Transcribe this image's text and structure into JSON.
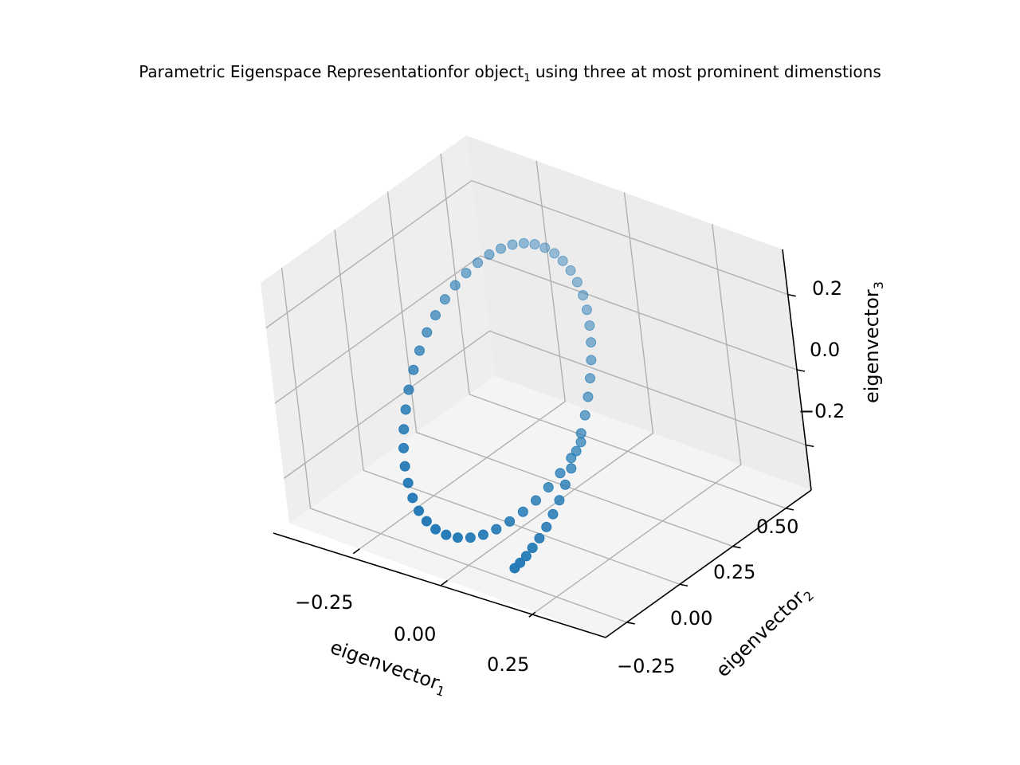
{
  "chart_data": {
    "type": "scatter",
    "projection": "3d",
    "title": {
      "prefix": "Parametric Eigenspace Representationfor object",
      "subscript": "1",
      "suffix": " using three at most prominent dimenstions"
    },
    "xlabel": {
      "text": "eigenvector",
      "subscript": "1"
    },
    "ylabel": {
      "text": "eigenvector",
      "subscript": "2"
    },
    "zlabel": {
      "text": "eigenvector",
      "subscript": "3"
    },
    "xticks": [
      "−0.25",
      "0.00",
      "0.25"
    ],
    "yticks": [
      "−0.25",
      "0.00",
      "0.25",
      "0.50"
    ],
    "zticks": [
      "−0.2",
      "0.0",
      "0.2"
    ],
    "xlim": [
      -0.45,
      0.45
    ],
    "ylim": [
      -0.35,
      0.62
    ],
    "zlim": [
      -0.32,
      0.32
    ],
    "grid": true,
    "marker_color": "#1f77b4",
    "series": [
      {
        "x": [
          0.17,
          0.177,
          0.184,
          0.189,
          0.194,
          0.197,
          0.197,
          0.195,
          0.19,
          0.184,
          0.175,
          0.165,
          0.153,
          0.139,
          0.123,
          0.106,
          0.087,
          0.067,
          0.046,
          0.024,
          0.0,
          -0.024,
          -0.048,
          -0.071,
          -0.094,
          -0.116,
          -0.137,
          -0.157,
          -0.175,
          -0.191,
          -0.205,
          -0.217,
          -0.226,
          -0.232,
          -0.235,
          -0.235,
          -0.232,
          -0.226,
          -0.217,
          -0.205,
          -0.191,
          -0.175,
          -0.157,
          -0.137,
          -0.116,
          -0.094,
          -0.071,
          -0.048,
          -0.024,
          0.0,
          0.024,
          0.046,
          0.067,
          0.087,
          0.106,
          0.123,
          0.139,
          0.153,
          0.165,
          0.175
        ],
        "y": [
          -0.3,
          -0.284,
          -0.264,
          -0.24,
          -0.212,
          -0.18,
          -0.145,
          -0.107,
          -0.066,
          -0.023,
          0.021,
          0.066,
          0.11,
          0.153,
          0.195,
          0.234,
          0.27,
          0.302,
          0.329,
          0.352,
          0.369,
          0.381,
          0.387,
          0.388,
          0.383,
          0.373,
          0.357,
          0.336,
          0.31,
          0.28,
          0.246,
          0.208,
          0.167,
          0.124,
          0.079,
          0.033,
          -0.013,
          -0.058,
          -0.102,
          -0.143,
          -0.182,
          -0.216,
          -0.246,
          -0.27,
          -0.289,
          -0.301,
          -0.306,
          -0.305,
          -0.297,
          -0.283,
          -0.263,
          -0.238,
          -0.209,
          -0.176,
          -0.141,
          -0.104,
          -0.066,
          -0.028,
          0.01,
          0.046
        ],
        "z": [
          -0.25,
          -0.24,
          -0.228,
          -0.214,
          -0.198,
          -0.18,
          -0.16,
          -0.139,
          -0.116,
          -0.092,
          -0.067,
          -0.041,
          -0.015,
          0.012,
          0.039,
          0.066,
          0.092,
          0.117,
          0.141,
          0.163,
          0.183,
          0.201,
          0.216,
          0.228,
          0.237,
          0.243,
          0.245,
          0.243,
          0.237,
          0.228,
          0.215,
          0.199,
          0.18,
          0.158,
          0.133,
          0.106,
          0.077,
          0.046,
          0.014,
          -0.018,
          -0.05,
          -0.081,
          -0.111,
          -0.139,
          -0.164,
          -0.186,
          -0.204,
          -0.218,
          -0.228,
          -0.233,
          -0.233,
          -0.228,
          -0.218,
          -0.204,
          -0.186,
          -0.165,
          -0.14,
          -0.113,
          -0.084,
          -0.053
        ]
      }
    ]
  }
}
